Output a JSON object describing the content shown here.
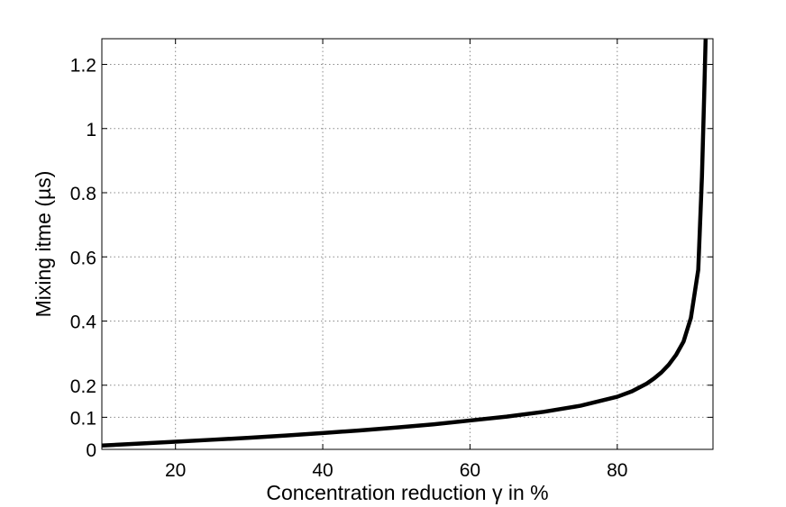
{
  "chart_data": {
    "type": "line",
    "xlabel": "Concentration reduction γ in %",
    "ylabel": "Mixing itme (µs)",
    "xlim": [
      10,
      93
    ],
    "ylim": [
      0,
      1.28
    ],
    "xticks": [
      20,
      40,
      60,
      80
    ],
    "xtick_labels": [
      "20",
      "40",
      "60",
      "80"
    ],
    "yticks": [
      0,
      0.1,
      0.2,
      0.4,
      0.6,
      0.8,
      1,
      1.2
    ],
    "ytick_labels": [
      "0",
      "0.1",
      "0.2",
      "0.4",
      "0.6",
      "0.8",
      "1",
      "1.2"
    ],
    "grid": true,
    "grid_style": "dotted",
    "line_color": "#000000",
    "series": [
      {
        "x": [
          10,
          15,
          20,
          25,
          30,
          35,
          40,
          45,
          50,
          55,
          60,
          65,
          70,
          75,
          80,
          82,
          84,
          85,
          86,
          87,
          88,
          89,
          90,
          91,
          91.5,
          91.8,
          92
        ],
        "y": [
          0.012,
          0.018,
          0.024,
          0.03,
          0.036,
          0.043,
          0.051,
          0.059,
          0.068,
          0.078,
          0.09,
          0.102,
          0.117,
          0.136,
          0.164,
          0.181,
          0.205,
          0.221,
          0.24,
          0.264,
          0.295,
          0.336,
          0.41,
          0.56,
          0.85,
          1.1,
          1.28
        ]
      }
    ]
  }
}
